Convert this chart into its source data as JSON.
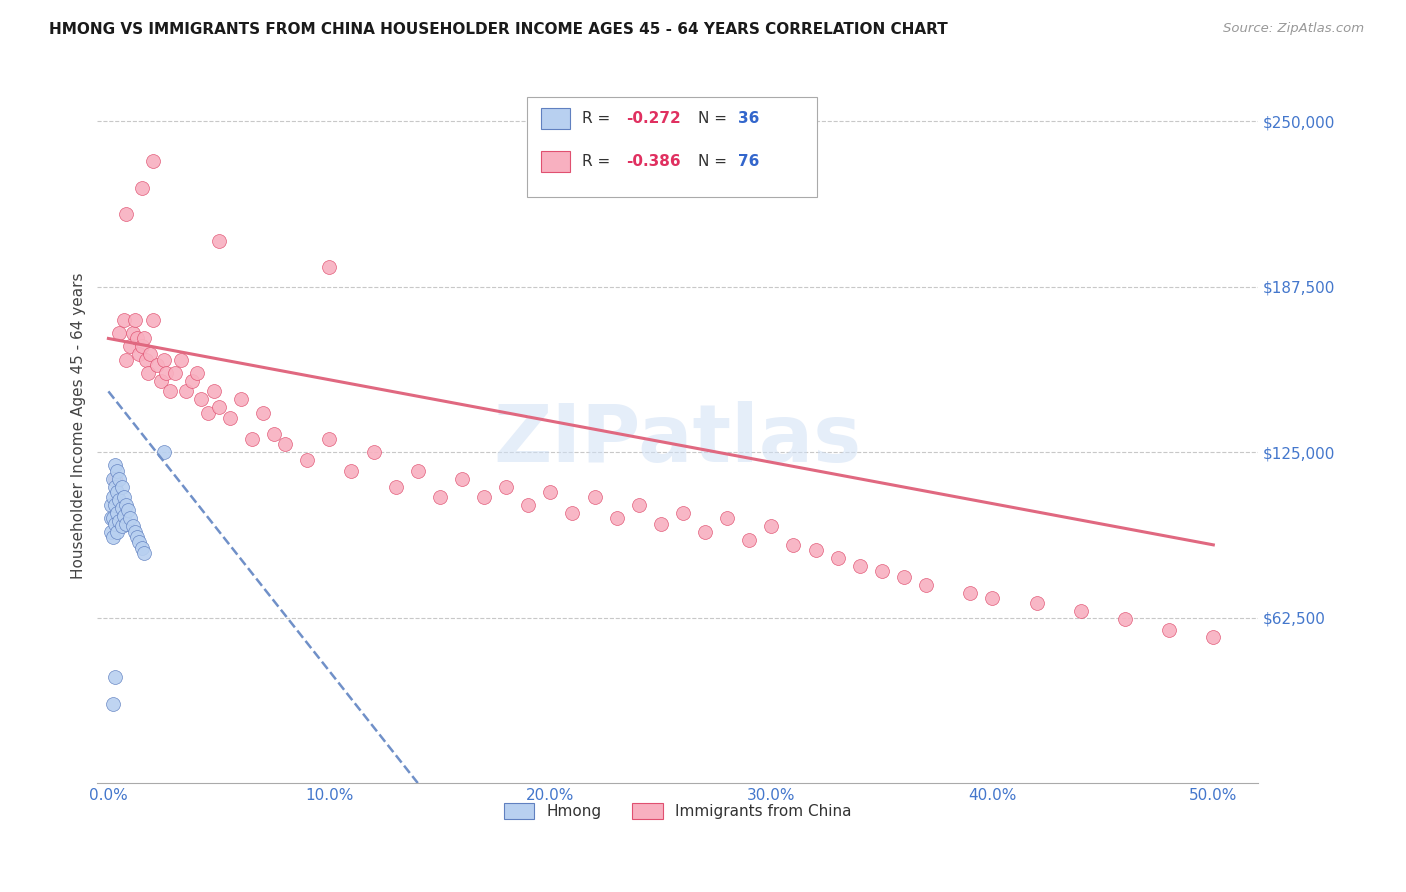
{
  "title": "HMONG VS IMMIGRANTS FROM CHINA HOUSEHOLDER INCOME AGES 45 - 64 YEARS CORRELATION CHART",
  "source": "Source: ZipAtlas.com",
  "ylabel_label": "Householder Income Ages 45 - 64 years",
  "x_tick_labels": [
    "0.0%",
    "10.0%",
    "20.0%",
    "30.0%",
    "40.0%",
    "50.0%"
  ],
  "x_tick_values": [
    0.0,
    0.1,
    0.2,
    0.3,
    0.4,
    0.5
  ],
  "y_tick_values": [
    62500,
    125000,
    187500,
    250000
  ],
  "y_tick_labels": [
    "$62,500",
    "$125,000",
    "$187,500",
    "$250,000"
  ],
  "ylim": [
    0,
    270000
  ],
  "xlim": [
    -0.005,
    0.52
  ],
  "background_color": "#ffffff",
  "grid_color": "#c8c8c8",
  "watermark": "ZIPatlas",
  "hmong_color": "#b8d0f0",
  "china_color": "#f8b0c0",
  "hmong_edge_color": "#6080c0",
  "china_edge_color": "#e05070",
  "trendline1_color": "#7090c8",
  "trendline2_color": "#e06880",
  "marker_size": 100,
  "hmong_x": [
    0.001,
    0.001,
    0.001,
    0.002,
    0.002,
    0.002,
    0.002,
    0.003,
    0.003,
    0.003,
    0.003,
    0.004,
    0.004,
    0.004,
    0.004,
    0.005,
    0.005,
    0.005,
    0.006,
    0.006,
    0.006,
    0.007,
    0.007,
    0.008,
    0.008,
    0.009,
    0.01,
    0.011,
    0.012,
    0.013,
    0.014,
    0.015,
    0.016,
    0.025,
    0.003,
    0.002
  ],
  "hmong_y": [
    105000,
    100000,
    95000,
    115000,
    108000,
    100000,
    93000,
    120000,
    112000,
    105000,
    98000,
    118000,
    110000,
    102000,
    95000,
    115000,
    107000,
    99000,
    112000,
    104000,
    97000,
    108000,
    101000,
    105000,
    98000,
    103000,
    100000,
    97000,
    95000,
    93000,
    91000,
    89000,
    87000,
    125000,
    40000,
    30000
  ],
  "china_x": [
    0.003,
    0.005,
    0.007,
    0.008,
    0.01,
    0.011,
    0.012,
    0.013,
    0.014,
    0.015,
    0.016,
    0.017,
    0.018,
    0.019,
    0.02,
    0.022,
    0.024,
    0.025,
    0.026,
    0.028,
    0.03,
    0.033,
    0.035,
    0.038,
    0.04,
    0.042,
    0.045,
    0.048,
    0.05,
    0.055,
    0.06,
    0.065,
    0.07,
    0.075,
    0.08,
    0.09,
    0.1,
    0.11,
    0.12,
    0.13,
    0.14,
    0.15,
    0.16,
    0.17,
    0.18,
    0.19,
    0.2,
    0.21,
    0.22,
    0.23,
    0.24,
    0.25,
    0.26,
    0.27,
    0.28,
    0.29,
    0.3,
    0.31,
    0.32,
    0.33,
    0.34,
    0.35,
    0.36,
    0.37,
    0.39,
    0.4,
    0.42,
    0.44,
    0.46,
    0.48,
    0.5,
    0.008,
    0.015,
    0.02,
    0.05,
    0.1
  ],
  "china_y": [
    115000,
    170000,
    175000,
    160000,
    165000,
    170000,
    175000,
    168000,
    162000,
    165000,
    168000,
    160000,
    155000,
    162000,
    175000,
    158000,
    152000,
    160000,
    155000,
    148000,
    155000,
    160000,
    148000,
    152000,
    155000,
    145000,
    140000,
    148000,
    142000,
    138000,
    145000,
    130000,
    140000,
    132000,
    128000,
    122000,
    130000,
    118000,
    125000,
    112000,
    118000,
    108000,
    115000,
    108000,
    112000,
    105000,
    110000,
    102000,
    108000,
    100000,
    105000,
    98000,
    102000,
    95000,
    100000,
    92000,
    97000,
    90000,
    88000,
    85000,
    82000,
    80000,
    78000,
    75000,
    72000,
    70000,
    68000,
    65000,
    62000,
    58000,
    55000,
    215000,
    225000,
    235000,
    205000,
    195000
  ],
  "hmong_trend_x": [
    0.0,
    0.14
  ],
  "hmong_trend_y": [
    148000,
    0
  ],
  "china_trend_x": [
    0.0,
    0.5
  ],
  "china_trend_y": [
    168000,
    90000
  ]
}
